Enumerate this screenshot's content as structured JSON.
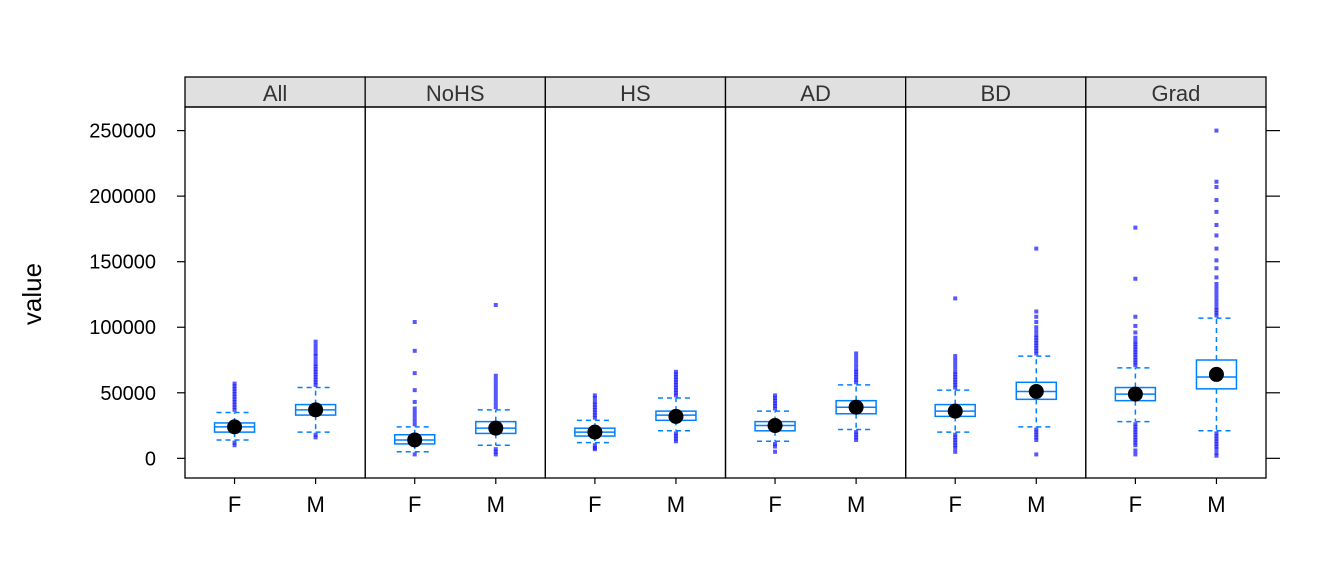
{
  "chart_data": {
    "type": "box",
    "ylabel": "value",
    "xlabel": "",
    "ylim": [
      -15000,
      268000
    ],
    "y_ticks": [
      "0",
      "50000",
      "100000",
      "150000",
      "200000",
      "250000"
    ],
    "panels": [
      {
        "label": "All",
        "groups": [
          {
            "category": "F",
            "min": 14000,
            "q1": 20000,
            "median": 24000,
            "q3": 27000,
            "max": 35000,
            "mean": 24000,
            "outliers_high": [
              37000,
              39000,
              41000,
              43000,
              45000,
              47000,
              49000,
              51000,
              53000,
              55000,
              57000
            ],
            "outliers_low": [
              12000,
              10000
            ]
          },
          {
            "category": "M",
            "min": 20000,
            "q1": 33000,
            "median": 37000,
            "q3": 41000,
            "max": 54000,
            "mean": 37000,
            "outliers_high": [
              56000,
              58000,
              60000,
              62000,
              64000,
              66000,
              68000,
              70000,
              72000,
              75000,
              78000,
              80000,
              83000,
              86000,
              89000
            ],
            "outliers_low": [
              18000,
              16000
            ]
          }
        ]
      },
      {
        "label": "NoHS",
        "groups": [
          {
            "category": "F",
            "min": 5000,
            "q1": 11000,
            "median": 14000,
            "q3": 18000,
            "max": 24000,
            "mean": 14000,
            "outliers_high": [
              26000,
              29000,
              32000,
              35000,
              38000,
              43000,
              52000,
              65000,
              82000,
              104000
            ],
            "outliers_low": [
              3000
            ]
          },
          {
            "category": "M",
            "min": 10000,
            "q1": 19000,
            "median": 23000,
            "q3": 28000,
            "max": 37000,
            "mean": 23000,
            "outliers_high": [
              39000,
              42000,
              45000,
              48000,
              51000,
              54000,
              57000,
              60000,
              63000,
              117000
            ],
            "outliers_low": [
              7000,
              5000,
              3000
            ]
          }
        ]
      },
      {
        "label": "HS",
        "groups": [
          {
            "category": "F",
            "min": 12000,
            "q1": 17000,
            "median": 20000,
            "q3": 23000,
            "max": 29000,
            "mean": 20000,
            "outliers_high": [
              31000,
              33000,
              35000,
              37000,
              39000,
              41000,
              43000,
              46000,
              48000
            ],
            "outliers_low": [
              10000,
              8000,
              7000
            ]
          },
          {
            "category": "M",
            "min": 21000,
            "q1": 29000,
            "median": 33000,
            "q3": 36000,
            "max": 46000,
            "mean": 32000,
            "outliers_high": [
              48000,
              50000,
              52000,
              54000,
              56000,
              58000,
              60000,
              62000,
              64000,
              66000
            ],
            "outliers_low": [
              19000,
              17000,
              15000,
              13000
            ]
          }
        ]
      },
      {
        "label": "AD",
        "groups": [
          {
            "category": "F",
            "min": 13000,
            "q1": 21000,
            "median": 25000,
            "q3": 28000,
            "max": 36000,
            "mean": 25000,
            "outliers_high": [
              38000,
              40000,
              42000,
              44000,
              46000,
              48000
            ],
            "outliers_low": [
              11000,
              9000,
              5000
            ]
          },
          {
            "category": "M",
            "min": 22000,
            "q1": 34000,
            "median": 39000,
            "q3": 44000,
            "max": 56000,
            "mean": 39000,
            "outliers_high": [
              58000,
              60000,
              62000,
              64000,
              66000,
              68000,
              71000,
              74000,
              77000,
              80000
            ],
            "outliers_low": [
              20000,
              18000,
              16000,
              14000
            ]
          }
        ]
      },
      {
        "label": "BD",
        "groups": [
          {
            "category": "F",
            "min": 20000,
            "q1": 32000,
            "median": 36000,
            "q3": 41000,
            "max": 52000,
            "mean": 36000,
            "outliers_high": [
              54000,
              56000,
              58000,
              60000,
              62000,
              64000,
              66000,
              69000,
              72000,
              75000,
              78000,
              122000
            ],
            "outliers_low": [
              18000,
              16000,
              14000,
              12000,
              10000,
              8000,
              5000
            ]
          },
          {
            "category": "M",
            "min": 24000,
            "q1": 45000,
            "median": 51000,
            "q3": 58000,
            "max": 78000,
            "mean": 51000,
            "outliers_high": [
              80000,
              82000,
              84000,
              86000,
              88000,
              90000,
              92000,
              94000,
              97000,
              100000,
              104000,
              108000,
              112000,
              160000
            ],
            "outliers_low": [
              22000,
              20000,
              18000,
              16000,
              14000,
              3000
            ]
          }
        ]
      },
      {
        "label": "Grad",
        "groups": [
          {
            "category": "F",
            "min": 28000,
            "q1": 44000,
            "median": 49000,
            "q3": 54000,
            "max": 69000,
            "mean": 49000,
            "outliers_high": [
              71000,
              73000,
              75000,
              77000,
              79000,
              81000,
              83000,
              85000,
              87000,
              89000,
              92000,
              96000,
              101000,
              108000,
              137000,
              176000
            ],
            "outliers_low": [
              26000,
              24000,
              22000,
              20000,
              18000,
              16000,
              14000,
              12000,
              10000,
              6000,
              3000
            ]
          },
          {
            "category": "M",
            "min": 21000,
            "q1": 53000,
            "median": 62000,
            "q3": 75000,
            "max": 107000,
            "mean": 64000,
            "outliers_high": [
              109000,
              111000,
              113000,
              115000,
              118000,
              121000,
              124000,
              127000,
              130000,
              133000,
              138000,
              145000,
              151000,
              160000,
              170000,
              178000,
              188000,
              197000,
              207000,
              211000,
              250000
            ],
            "outliers_low": [
              19000,
              17000,
              15000,
              13000,
              11000,
              9000,
              7000,
              4000,
              2000
            ]
          }
        ]
      }
    ],
    "colors": {
      "box": "#0080ff",
      "points": "#1f1fff",
      "mean_dot": "#000000",
      "strip_bg": "#e0e0e0",
      "frame": "#000000"
    }
  }
}
